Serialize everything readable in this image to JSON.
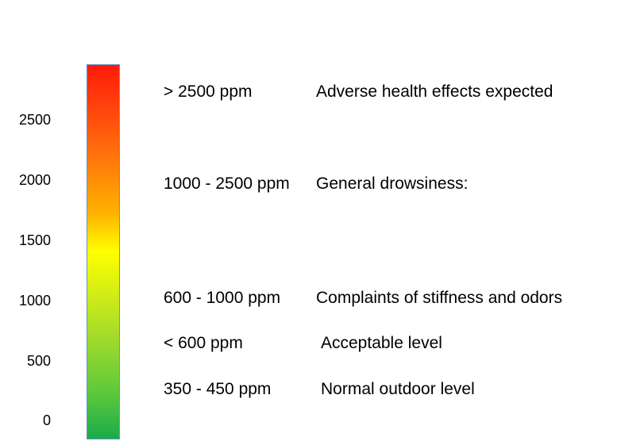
{
  "scale": {
    "ticks": [
      "2500",
      "2000",
      "1500",
      "1000",
      "500",
      "0"
    ],
    "gradient": {
      "top": "#ff1a0a",
      "upper": "#ff6a0d",
      "middle": "#ffff00",
      "lower": "#a6dc2a",
      "bottom": "#1aab4a"
    }
  },
  "levels": [
    {
      "range": "> 2500 ppm",
      "description": "Adverse health effects expected"
    },
    {
      "range": "1000 - 2500 ppm",
      "description": "General drowsiness:"
    },
    {
      "range": "600 - 1000 ppm",
      "description": "Complaints of stiffness and odors"
    },
    {
      "range": "< 600 ppm",
      "description": "Acceptable level"
    },
    {
      "range": "350 - 450 ppm",
      "description": "Normal outdoor level"
    }
  ]
}
